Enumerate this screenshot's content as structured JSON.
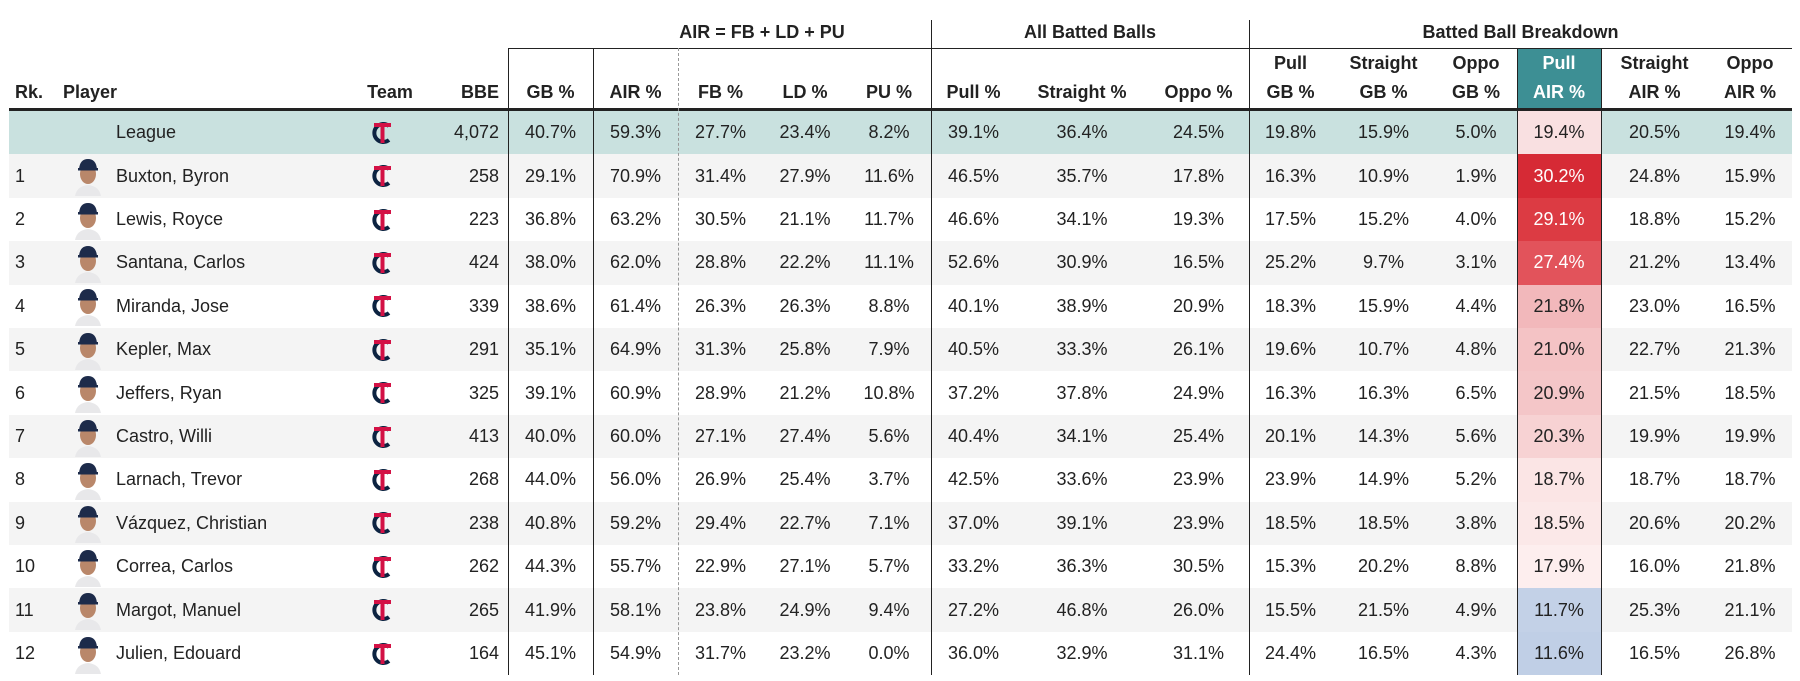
{
  "group_headers": [
    "AIR = FB + LD + PU",
    "All Batted Balls",
    "Batted Ball Breakdown"
  ],
  "columns": [
    [
      "Rk."
    ],
    [
      "Player"
    ],
    [
      "Team"
    ],
    [
      "BBE"
    ],
    [
      "GB %"
    ],
    [
      "AIR %"
    ],
    [
      "FB %"
    ],
    [
      "LD %"
    ],
    [
      "PU %"
    ],
    [
      "Pull %"
    ],
    [
      "Straight %"
    ],
    [
      "Oppo %"
    ],
    [
      "Pull",
      "GB %"
    ],
    [
      "Straight",
      "GB %"
    ],
    [
      "Oppo",
      "GB %"
    ],
    [
      "Pull",
      "AIR %"
    ],
    [
      "Straight",
      "AIR %"
    ],
    [
      "Oppo",
      "AIR %"
    ]
  ],
  "highlight_header_color": "#3d8f94",
  "league": {
    "name": "League",
    "bbe": "4,072",
    "background": "#c9e1df",
    "stats": [
      "40.7%",
      "59.3%",
      "27.7%",
      "23.4%",
      "8.2%",
      "39.1%",
      "36.4%",
      "24.5%",
      "19.8%",
      "15.9%",
      "5.0%",
      "19.4%",
      "20.5%",
      "19.4%"
    ],
    "highlight": {
      "background": "#f9e0e1",
      "text": "#222222"
    }
  },
  "rows": [
    {
      "rank": "1",
      "name": "Buxton, Byron",
      "bbe": "258",
      "stats": [
        "29.1%",
        "70.9%",
        "31.4%",
        "27.9%",
        "11.6%",
        "46.5%",
        "35.7%",
        "17.8%",
        "16.3%",
        "10.9%",
        "1.9%",
        "30.2%",
        "24.8%",
        "15.9%"
      ],
      "highlight": {
        "background": "#d62a35",
        "text": "#ffffff"
      }
    },
    {
      "rank": "2",
      "name": "Lewis, Royce",
      "bbe": "223",
      "stats": [
        "36.8%",
        "63.2%",
        "30.5%",
        "21.1%",
        "11.7%",
        "46.6%",
        "34.1%",
        "19.3%",
        "17.5%",
        "15.2%",
        "4.0%",
        "29.1%",
        "18.8%",
        "15.2%"
      ],
      "highlight": {
        "background": "#dc3b43",
        "text": "#ffffff"
      }
    },
    {
      "rank": "3",
      "name": "Santana, Carlos",
      "bbe": "424",
      "stats": [
        "38.0%",
        "62.0%",
        "28.8%",
        "22.2%",
        "11.1%",
        "52.6%",
        "30.9%",
        "16.5%",
        "25.2%",
        "9.7%",
        "3.1%",
        "27.4%",
        "21.2%",
        "13.4%"
      ],
      "highlight": {
        "background": "#e2535b",
        "text": "#ffffff"
      }
    },
    {
      "rank": "4",
      "name": "Miranda, Jose",
      "bbe": "339",
      "stats": [
        "38.6%",
        "61.4%",
        "26.3%",
        "26.3%",
        "8.8%",
        "40.1%",
        "38.9%",
        "20.9%",
        "18.3%",
        "15.9%",
        "4.4%",
        "21.8%",
        "23.0%",
        "16.5%"
      ],
      "highlight": {
        "background": "#f2b8bb",
        "text": "#222222"
      }
    },
    {
      "rank": "5",
      "name": "Kepler, Max",
      "bbe": "291",
      "stats": [
        "35.1%",
        "64.9%",
        "31.3%",
        "25.8%",
        "7.9%",
        "40.5%",
        "33.3%",
        "26.1%",
        "19.6%",
        "10.7%",
        "4.8%",
        "21.0%",
        "22.7%",
        "21.3%"
      ],
      "highlight": {
        "background": "#f4c3c5",
        "text": "#222222"
      }
    },
    {
      "rank": "6",
      "name": "Jeffers, Ryan",
      "bbe": "325",
      "stats": [
        "39.1%",
        "60.9%",
        "28.9%",
        "21.2%",
        "10.8%",
        "37.2%",
        "37.8%",
        "24.9%",
        "16.3%",
        "16.3%",
        "6.5%",
        "20.9%",
        "21.5%",
        "18.5%"
      ],
      "highlight": {
        "background": "#f4c6c8",
        "text": "#222222"
      }
    },
    {
      "rank": "7",
      "name": "Castro, Willi",
      "bbe": "413",
      "stats": [
        "40.0%",
        "60.0%",
        "27.1%",
        "27.4%",
        "5.6%",
        "40.4%",
        "34.1%",
        "25.4%",
        "20.1%",
        "14.3%",
        "5.6%",
        "20.3%",
        "19.9%",
        "19.9%"
      ],
      "highlight": {
        "background": "#f7d2d3",
        "text": "#222222"
      }
    },
    {
      "rank": "8",
      "name": "Larnach, Trevor",
      "bbe": "268",
      "stats": [
        "44.0%",
        "56.0%",
        "26.9%",
        "25.4%",
        "3.7%",
        "42.5%",
        "33.6%",
        "23.9%",
        "23.9%",
        "14.9%",
        "5.2%",
        "18.7%",
        "18.7%",
        "18.7%"
      ],
      "highlight": {
        "background": "#fbe5e5",
        "text": "#222222"
      }
    },
    {
      "rank": "9",
      "name": "Vázquez, Christian",
      "bbe": "238",
      "stats": [
        "40.8%",
        "59.2%",
        "29.4%",
        "22.7%",
        "7.1%",
        "37.0%",
        "39.1%",
        "23.9%",
        "18.5%",
        "18.5%",
        "3.8%",
        "18.5%",
        "20.6%",
        "20.2%"
      ],
      "highlight": {
        "background": "#fbe8e8",
        "text": "#222222"
      }
    },
    {
      "rank": "10",
      "name": "Correa, Carlos",
      "bbe": "262",
      "stats": [
        "44.3%",
        "55.7%",
        "22.9%",
        "27.1%",
        "5.7%",
        "33.2%",
        "36.3%",
        "30.5%",
        "15.3%",
        "20.2%",
        "8.8%",
        "17.9%",
        "16.0%",
        "21.8%"
      ],
      "highlight": {
        "background": "#fdeeee",
        "text": "#222222"
      }
    },
    {
      "rank": "11",
      "name": "Margot, Manuel",
      "bbe": "265",
      "stats": [
        "41.9%",
        "58.1%",
        "23.8%",
        "24.9%",
        "9.4%",
        "27.2%",
        "46.8%",
        "26.0%",
        "15.5%",
        "21.5%",
        "4.9%",
        "11.7%",
        "25.3%",
        "21.1%"
      ],
      "highlight": {
        "background": "#c3d1e7",
        "text": "#222222"
      }
    },
    {
      "rank": "12",
      "name": "Julien, Edouard",
      "bbe": "164",
      "stats": [
        "45.1%",
        "54.9%",
        "31.7%",
        "23.2%",
        "0.0%",
        "36.0%",
        "32.9%",
        "31.1%",
        "24.4%",
        "16.5%",
        "4.3%",
        "11.6%",
        "16.5%",
        "26.8%"
      ],
      "highlight": {
        "background": "#c0cfe6",
        "text": "#222222"
      }
    }
  ]
}
